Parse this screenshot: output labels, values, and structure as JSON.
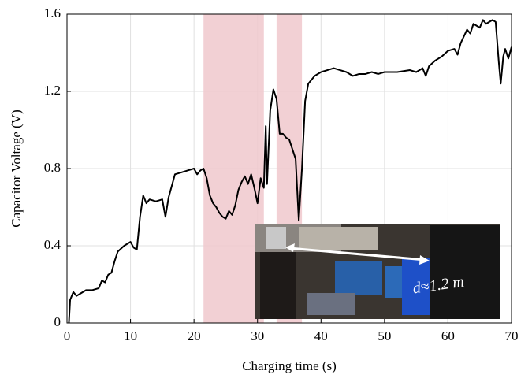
{
  "chart_data": {
    "type": "line",
    "x_label": "Charging time (s)",
    "y_label": "Capacitor Voltage (V)",
    "x": [
      0.3,
      0.5,
      1,
      1.5,
      2,
      3,
      4,
      5,
      5.5,
      6,
      6.5,
      7,
      7.5,
      8,
      9,
      10,
      10.5,
      11,
      11.5,
      12,
      12.5,
      13,
      14,
      15,
      15.5,
      16,
      17,
      18,
      19,
      20,
      20.5,
      21,
      21.5,
      22,
      22.5,
      23,
      23.5,
      24,
      24.5,
      25,
      25.5,
      26,
      26.5,
      27,
      27.5,
      28,
      28.5,
      29,
      29.5,
      30,
      30.5,
      31,
      31.3,
      31.5,
      32,
      32.5,
      33,
      33.5,
      34,
      34.5,
      35,
      35.5,
      36,
      36.5,
      37,
      37.5,
      38,
      39,
      40,
      41,
      42,
      43,
      44,
      45,
      46,
      47,
      48,
      49,
      50,
      52,
      54,
      55,
      56,
      56.5,
      57,
      58,
      59,
      60,
      61,
      61.5,
      62,
      63,
      63.5,
      64,
      65,
      65.5,
      66,
      67,
      67.5,
      68,
      68.3,
      68.7,
      69,
      69.5,
      70
    ],
    "series": [
      {
        "name": "Capacitor voltage",
        "color": "#000000",
        "values": [
          0,
          0.12,
          0.16,
          0.14,
          0.15,
          0.17,
          0.17,
          0.18,
          0.22,
          0.21,
          0.25,
          0.26,
          0.32,
          0.37,
          0.4,
          0.42,
          0.39,
          0.38,
          0.55,
          0.66,
          0.62,
          0.64,
          0.63,
          0.64,
          0.55,
          0.65,
          0.77,
          0.78,
          0.79,
          0.8,
          0.77,
          0.79,
          0.8,
          0.75,
          0.66,
          0.62,
          0.6,
          0.57,
          0.55,
          0.54,
          0.58,
          0.56,
          0.61,
          0.69,
          0.73,
          0.76,
          0.72,
          0.77,
          0.7,
          0.62,
          0.75,
          0.7,
          1.02,
          0.72,
          1.1,
          1.21,
          1.16,
          0.98,
          0.98,
          0.96,
          0.95,
          0.9,
          0.85,
          0.53,
          0.8,
          1.15,
          1.24,
          1.28,
          1.3,
          1.31,
          1.32,
          1.31,
          1.3,
          1.28,
          1.29,
          1.29,
          1.3,
          1.29,
          1.3,
          1.3,
          1.31,
          1.3,
          1.32,
          1.28,
          1.33,
          1.36,
          1.38,
          1.41,
          1.42,
          1.39,
          1.45,
          1.52,
          1.5,
          1.55,
          1.53,
          1.57,
          1.55,
          1.57,
          1.56,
          1.35,
          1.24,
          1.38,
          1.42,
          1.37,
          1.43
        ]
      }
    ],
    "shaded_regions": [
      [
        21.5,
        31
      ],
      [
        33,
        37
      ]
    ],
    "shade_color": "#f0c8cc",
    "annotation": "d≈1.2 m",
    "xlim": [
      0,
      70
    ],
    "ylim": [
      0,
      1.6
    ],
    "xticks": [
      0,
      10,
      20,
      30,
      40,
      50,
      60,
      70
    ],
    "yticks": [
      0,
      0.4,
      0.8,
      1.2,
      1.6
    ],
    "grid": true
  }
}
